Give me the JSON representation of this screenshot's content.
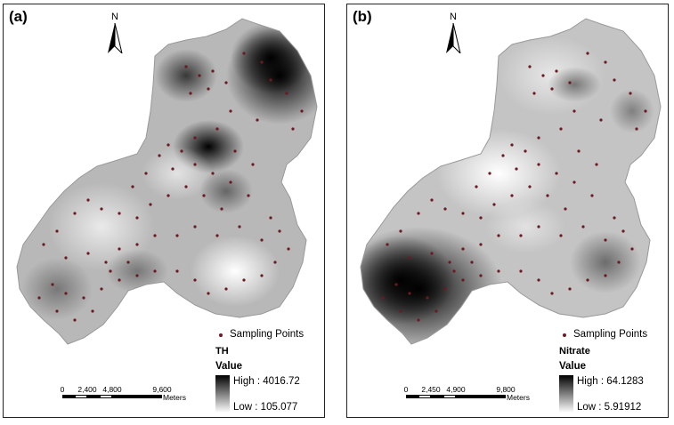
{
  "panels": [
    {
      "id": "a",
      "label": "(a)",
      "north_label": "N",
      "legend": {
        "points_label": "Sampling Points",
        "variable": "TH",
        "value_label": "Value",
        "high": "High : 4016.72",
        "low": "Low : 105.077"
      },
      "scale": {
        "ticks": [
          "0",
          "2,400",
          "4,800",
          "9,600"
        ],
        "units": "Meters"
      }
    },
    {
      "id": "b",
      "label": "(b)",
      "north_label": "N",
      "legend": {
        "points_label": "Sampling Points",
        "variable": "Nitrate",
        "value_label": "Value",
        "high": "High : 64.1283",
        "low": "Low : 5.91912"
      },
      "scale": {
        "ticks": [
          "0",
          "2,450",
          "4,900",
          "9,800"
        ],
        "units": "Meters"
      }
    }
  ],
  "colors": {
    "sampling_point": "#6b1a24",
    "ramp_high": "#000000",
    "ramp_low": "#ffffff"
  }
}
